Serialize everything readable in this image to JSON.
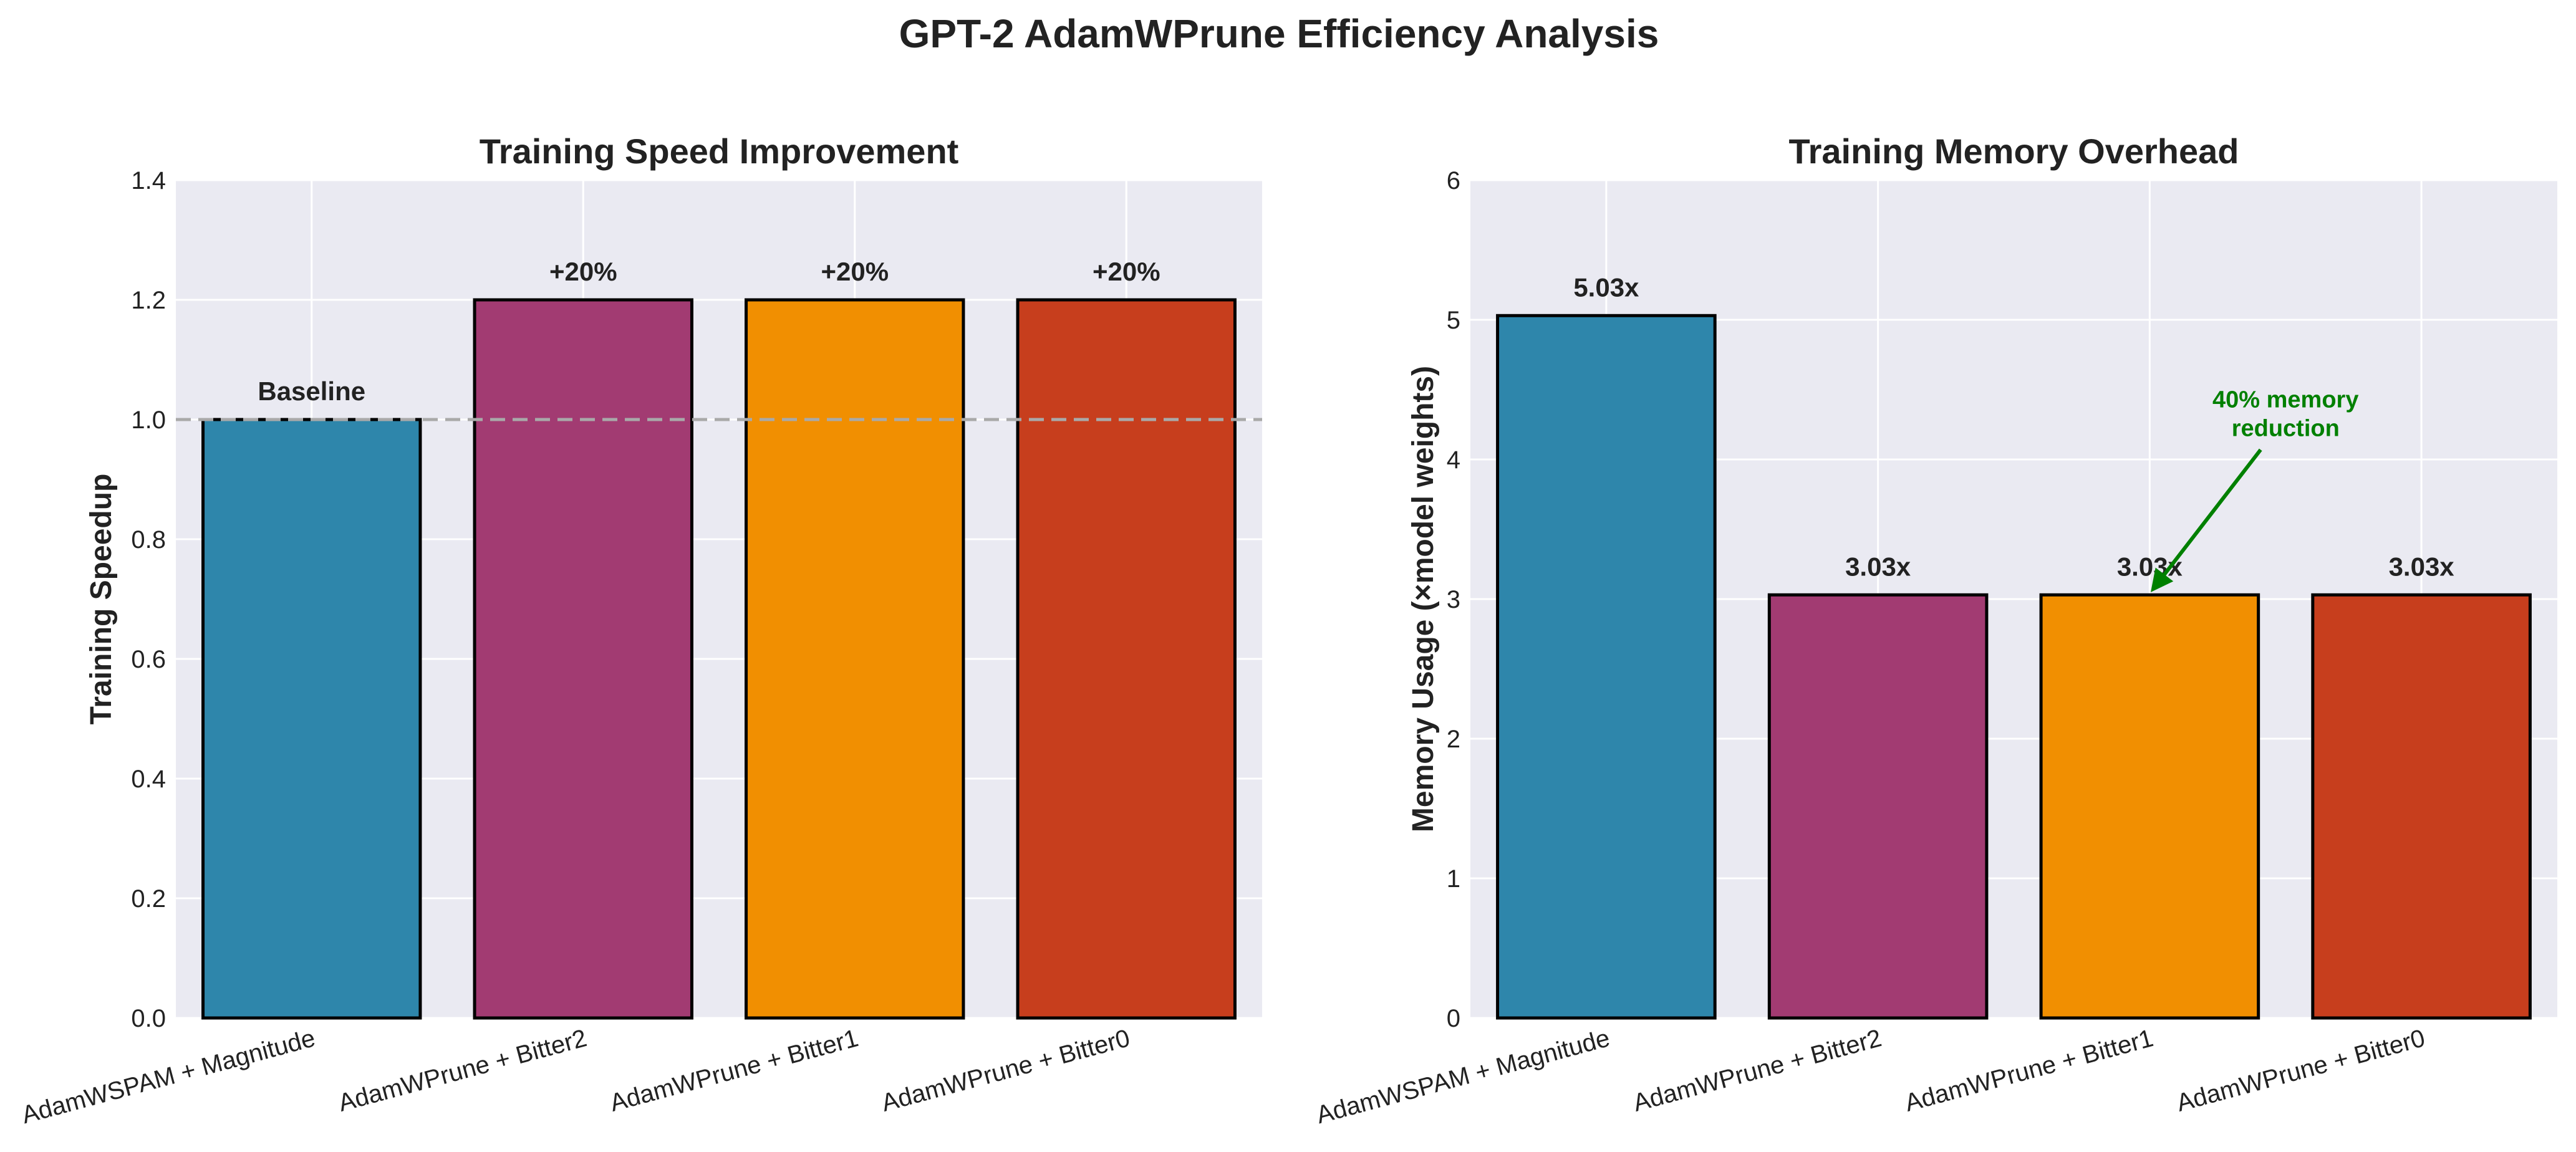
{
  "figure": {
    "suptitle": "GPT-2 AdamWPrune Efficiency Analysis"
  },
  "chart_data": [
    {
      "type": "bar",
      "title": "Training Speed Improvement",
      "xlabel": "",
      "ylabel": "Training Speedup",
      "categories": [
        "AdamWSPAM + Magnitude",
        "AdamWPrune + Bitter2",
        "AdamWPrune + Bitter1",
        "AdamWPrune + Bitter0"
      ],
      "values": [
        1.0,
        1.2,
        1.2,
        1.2
      ],
      "data_labels": [
        "Baseline",
        "+20%",
        "+20%",
        "+20%"
      ],
      "colors": [
        "#2E86AB",
        "#A23B72",
        "#F18F01",
        "#C73E1D"
      ],
      "ylim": [
        0,
        1.4
      ],
      "yticks": [
        0.0,
        0.2,
        0.4,
        0.6,
        0.8,
        1.0,
        1.2,
        1.4
      ],
      "ytick_labels": [
        "0.0",
        "0.2",
        "0.4",
        "0.6",
        "0.8",
        "1.0",
        "1.2",
        "1.4"
      ],
      "reference_line": 1.0,
      "grid": true
    },
    {
      "type": "bar",
      "title": "Training Memory Overhead",
      "xlabel": "",
      "ylabel": "Memory Usage (×model weights)",
      "categories": [
        "AdamWSPAM + Magnitude",
        "AdamWPrune + Bitter2",
        "AdamWPrune + Bitter1",
        "AdamWPrune + Bitter0"
      ],
      "values": [
        5.03,
        3.03,
        3.03,
        3.03
      ],
      "data_labels": [
        "5.03x",
        "3.03x",
        "3.03x",
        "3.03x"
      ],
      "colors": [
        "#2E86AB",
        "#A23B72",
        "#F18F01",
        "#C73E1D"
      ],
      "ylim": [
        0,
        6
      ],
      "yticks": [
        0,
        1,
        2,
        3,
        4,
        5,
        6
      ],
      "ytick_labels": [
        "0",
        "1",
        "2",
        "3",
        "4",
        "5",
        "6"
      ],
      "annotation": {
        "lines": [
          "40% memory",
          "reduction"
        ],
        "color": "#008000",
        "target_category_index": 2,
        "target_value": 3.03,
        "text_value": 4.15
      },
      "grid": true
    }
  ]
}
